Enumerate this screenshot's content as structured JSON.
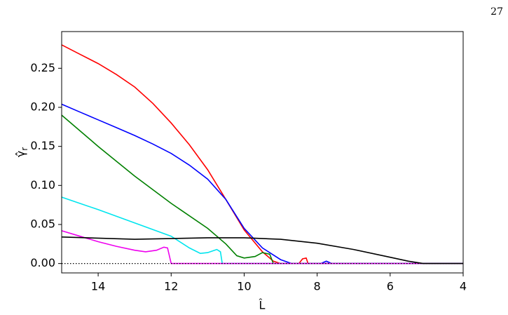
{
  "page_number": "27",
  "chart_data": {
    "type": "line",
    "xlabel": "L̂",
    "ylabel": "γ̂",
    "ylabel_subscript": "r",
    "xlim": [
      15,
      4
    ],
    "ylim": [
      -0.012,
      0.297
    ],
    "xticks": [
      14,
      12,
      10,
      8,
      6,
      4
    ],
    "yticks": [
      {
        "value": 0,
        "label": "0.00"
      },
      {
        "value": 0.05,
        "label": "0.05"
      },
      {
        "value": 0.1,
        "label": "0.10"
      },
      {
        "value": 0.15,
        "label": "0.15"
      },
      {
        "value": 0.2,
        "label": "0.20"
      },
      {
        "value": 0.25,
        "label": "0.25"
      }
    ],
    "reference_line": {
      "y": 0,
      "style": "dotted",
      "color": "#000000"
    },
    "series": [
      {
        "color": "#ff0000",
        "x": [
          15,
          14.5,
          14,
          13.5,
          13,
          12.5,
          12,
          11.5,
          11,
          10.5,
          10,
          9.5,
          9.2,
          9.0,
          8.5,
          8.4,
          8.3,
          8.25,
          4
        ],
        "values": [
          0.28,
          0.268,
          0.256,
          0.242,
          0.226,
          0.205,
          0.18,
          0.152,
          0.12,
          0.082,
          0.043,
          0.015,
          0.003,
          0,
          0,
          0.006,
          0.007,
          0,
          0
        ]
      },
      {
        "color": "#0000ff",
        "x": [
          15,
          14.5,
          14,
          13.5,
          13,
          12.5,
          12,
          11.5,
          11,
          10.5,
          10,
          9.5,
          9.0,
          8.7,
          7.9,
          7.75,
          7.6,
          4
        ],
        "values": [
          0.204,
          0.194,
          0.184,
          0.174,
          0.164,
          0.153,
          0.141,
          0.126,
          0.108,
          0.082,
          0.045,
          0.02,
          0.005,
          0,
          0,
          0.003,
          0,
          0
        ]
      },
      {
        "color": "#008000",
        "x": [
          15,
          14,
          13,
          12,
          11,
          10.5,
          10.2,
          10,
          9.7,
          9.5,
          9.3,
          9.2,
          4
        ],
        "values": [
          0.19,
          0.15,
          0.112,
          0.077,
          0.045,
          0.025,
          0.01,
          0.007,
          0.009,
          0.014,
          0.012,
          0,
          0
        ]
      },
      {
        "color": "#00e5ee",
        "x": [
          15,
          14,
          13,
          12,
          11.5,
          11.2,
          11,
          10.75,
          10.65,
          10.6,
          4
        ],
        "values": [
          0.085,
          0.069,
          0.052,
          0.035,
          0.02,
          0.013,
          0.014,
          0.018,
          0.015,
          0,
          0
        ]
      },
      {
        "color": "#ee00ee",
        "x": [
          15,
          14.5,
          14,
          13.5,
          13,
          12.7,
          12.4,
          12.2,
          12.1,
          12.05,
          12.0,
          4
        ],
        "values": [
          0.042,
          0.035,
          0.028,
          0.022,
          0.017,
          0.015,
          0.017,
          0.021,
          0.02,
          0.01,
          0,
          0
        ]
      },
      {
        "color": "#000000",
        "x": [
          15,
          13,
          11,
          10,
          9,
          8,
          7,
          6,
          5.5,
          5.1,
          4
        ],
        "values": [
          0.034,
          0.031,
          0.033,
          0.033,
          0.031,
          0.026,
          0.018,
          0.008,
          0.003,
          0,
          0
        ]
      }
    ]
  }
}
